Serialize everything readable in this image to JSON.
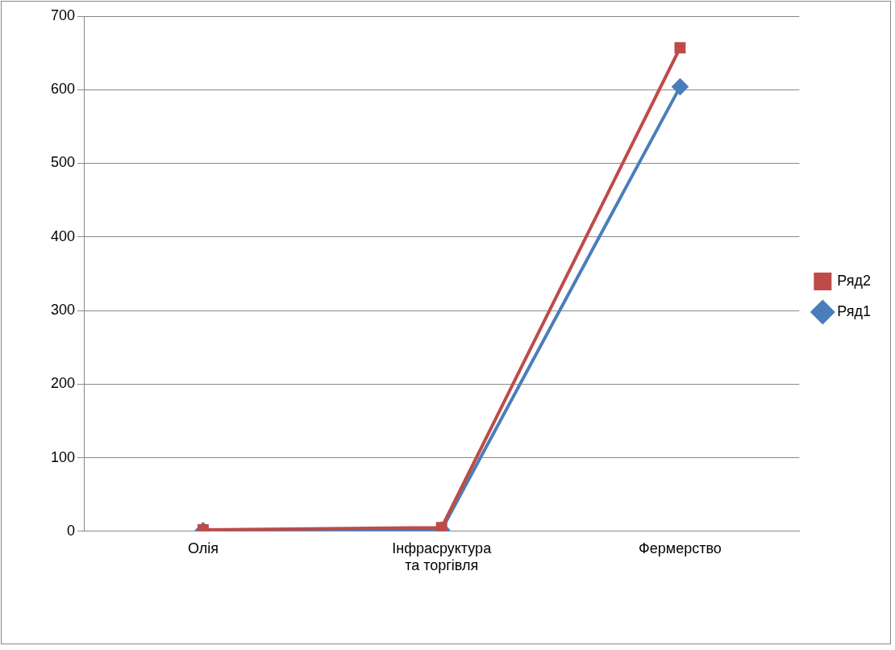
{
  "chart_data": {
    "type": "line",
    "categories": [
      "Олія",
      "Інфрасруктура та торгівля",
      "Фермерство"
    ],
    "series": [
      {
        "name": "Ряд1",
        "color": "#4a7ebb",
        "values": [
          1,
          2,
          604
        ],
        "marker": "diamond"
      },
      {
        "name": "Ряд2",
        "color": "#be4b48",
        "values": [
          2,
          5,
          657
        ],
        "marker": "square"
      }
    ],
    "ylim": [
      0,
      700
    ],
    "yticks": [
      0,
      100,
      200,
      300,
      400,
      500,
      600,
      700
    ],
    "grid": "y",
    "legend": "right"
  }
}
